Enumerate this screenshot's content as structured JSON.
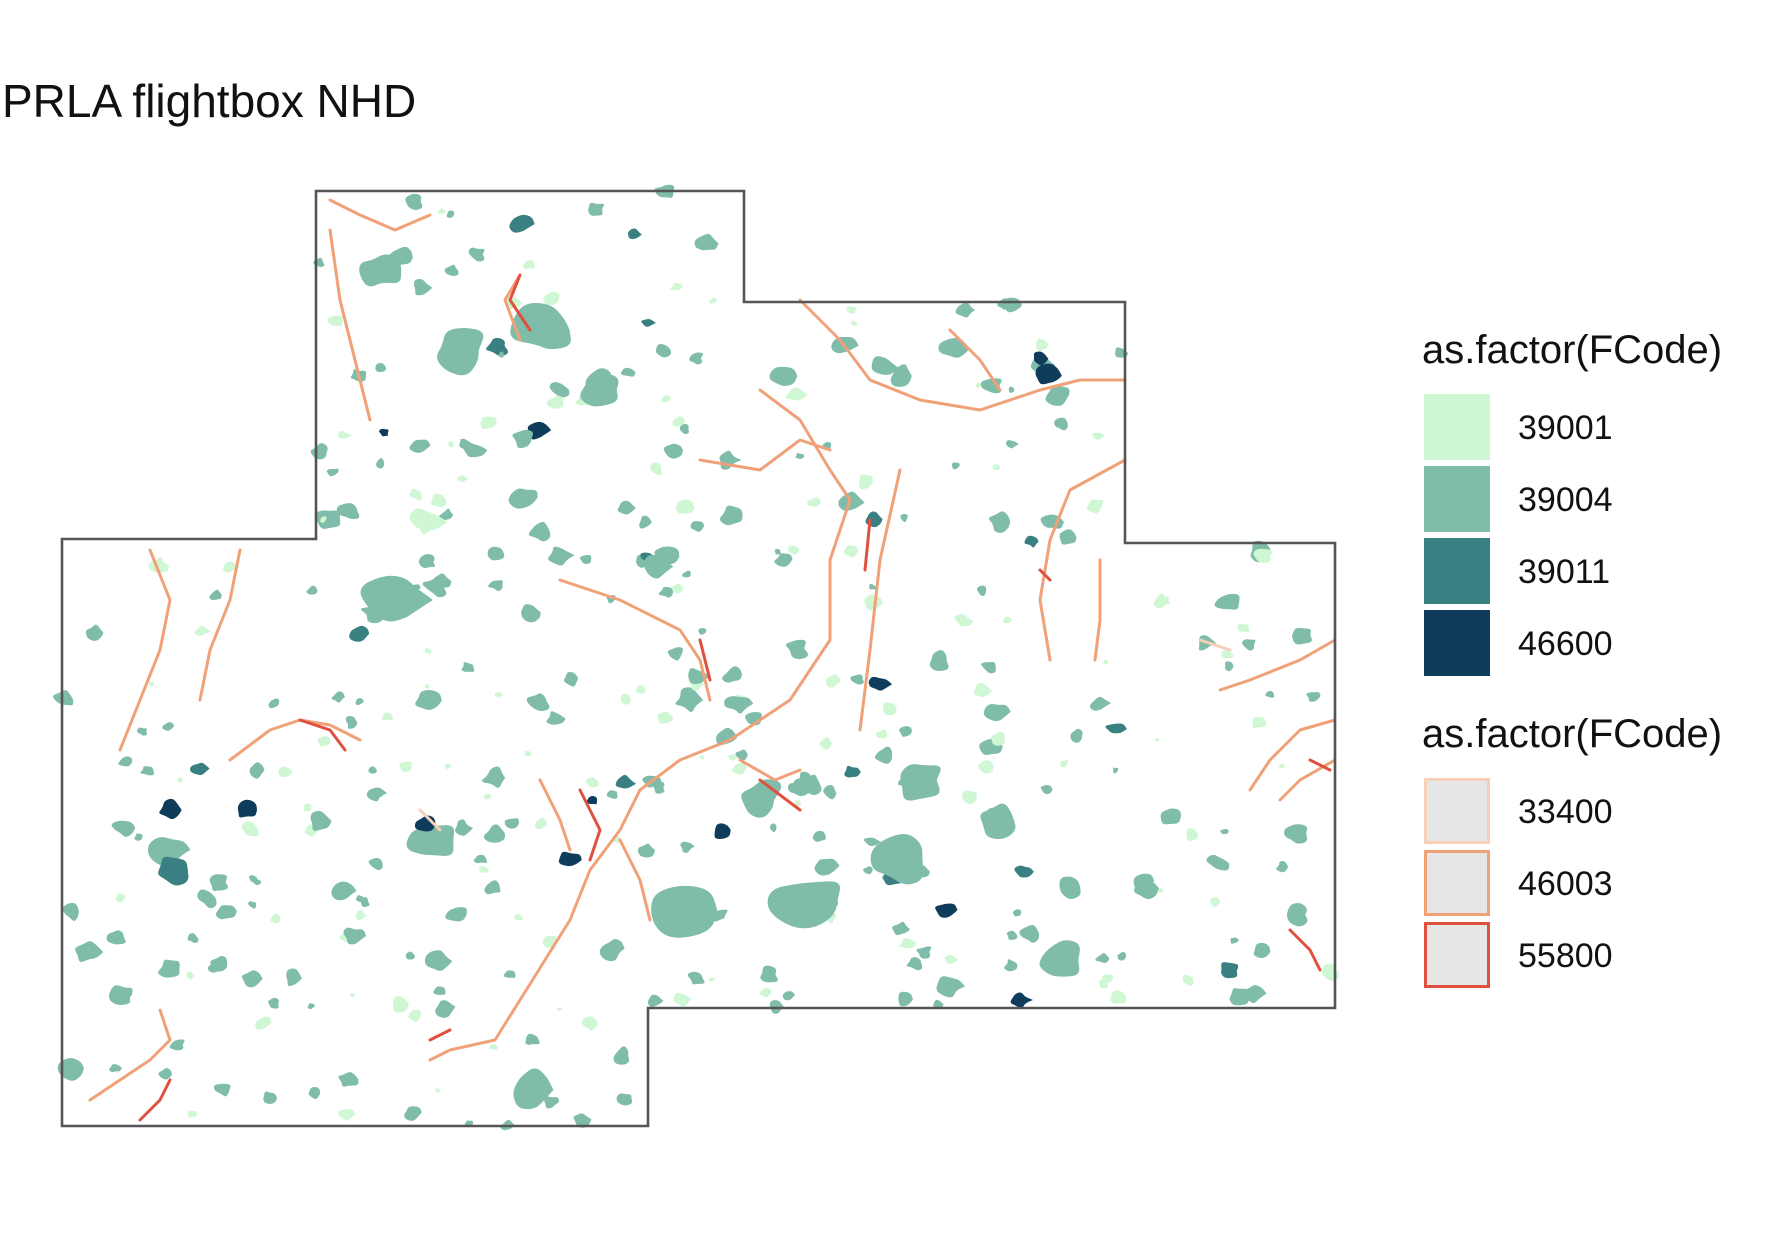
{
  "title": "PRLA flightbox NHD",
  "colors": {
    "boundary": "#555555",
    "fcode_39001": "#d0f7d4",
    "fcode_39004": "#7fbcaa",
    "fcode_39011": "#3a7f82",
    "fcode_46600": "#0e3c5a",
    "fcode_33400": "#f7d0b8",
    "fcode_46003": "#f0a178",
    "fcode_55800": "#e0503f",
    "line_swatch_fill": "#e6e6e6"
  },
  "legend_fill": {
    "title": "as.factor(FCode)",
    "items": [
      {
        "label": "39001",
        "color": "#d0f7d4"
      },
      {
        "label": "39004",
        "color": "#7fbcaa"
      },
      {
        "label": "39011",
        "color": "#3a7f82"
      },
      {
        "label": "46600",
        "color": "#0e3c5a"
      }
    ]
  },
  "legend_line": {
    "title": "as.factor(FCode)",
    "items": [
      {
        "label": "33400",
        "color": "#f7d0b8"
      },
      {
        "label": "46003",
        "color": "#f0a178"
      },
      {
        "label": "55800",
        "color": "#e0503f"
      }
    ]
  }
}
